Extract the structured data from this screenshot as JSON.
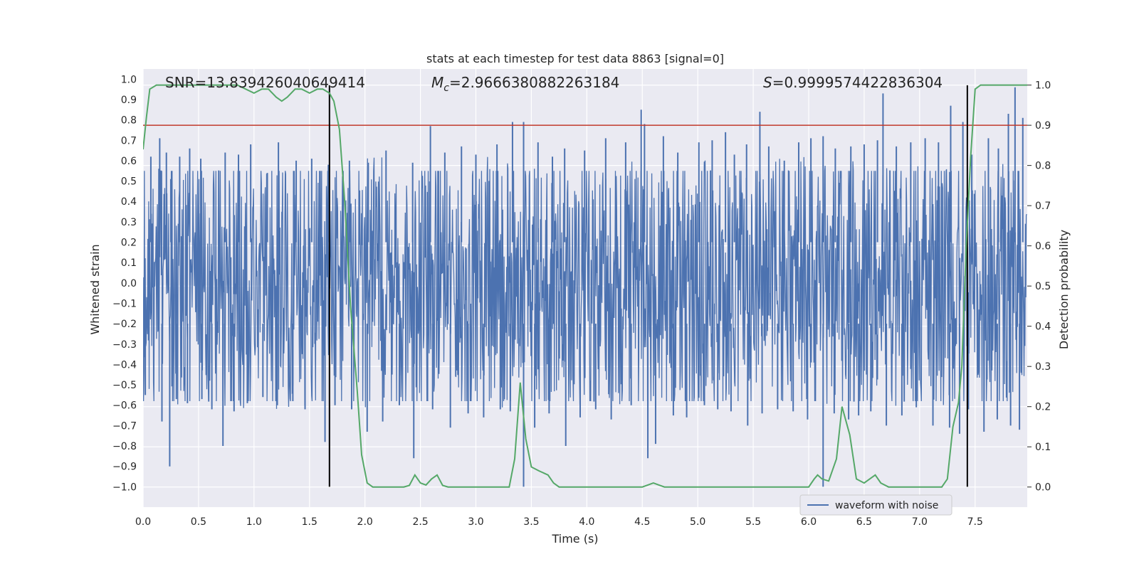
{
  "chart_data": {
    "type": "line",
    "title": "stats at each timestep for test data 8863 [signal=0]",
    "xlabel": "Time (s)",
    "ylabel_left": "Whitened strain",
    "ylabel_right": "Detection probability",
    "xlim": [
      0.0,
      7.97
    ],
    "ylim_left": [
      -1.1,
      1.05
    ],
    "ylim_right": [
      -0.05,
      1.04
    ],
    "grid": true,
    "x_ticks": [
      0.0,
      0.5,
      1.0,
      1.5,
      2.0,
      2.5,
      3.0,
      3.5,
      4.0,
      4.5,
      5.0,
      5.5,
      6.0,
      6.5,
      7.0,
      7.5
    ],
    "x_tick_labels": [
      "0.0",
      "0.5",
      "1.0",
      "1.5",
      "2.0",
      "2.5",
      "3.0",
      "3.5",
      "4.0",
      "4.5",
      "5.0",
      "5.5",
      "6.0",
      "6.5",
      "7.0",
      "7.5"
    ],
    "y_left_ticks": [
      1.0,
      0.9,
      0.8,
      0.7,
      0.6,
      0.5,
      0.4,
      0.3,
      0.2,
      0.1,
      0.0,
      -0.1,
      -0.2,
      -0.3,
      -0.4,
      -0.5,
      -0.6,
      -0.7,
      -0.8,
      -0.9,
      -1.0
    ],
    "y_left_tick_labels": [
      "1.0",
      "0.9",
      "0.8",
      "0.7",
      "0.6",
      "0.5",
      "0.4",
      "0.3",
      "0.2",
      "0.1",
      "0.0",
      "−0.1",
      "−0.2",
      "−0.3",
      "−0.4",
      "−0.5",
      "−0.6",
      "−0.7",
      "−0.8",
      "−0.9",
      "−1.0"
    ],
    "y_right_ticks": [
      1.0,
      0.9,
      0.8,
      0.7,
      0.6,
      0.5,
      0.4,
      0.3,
      0.2,
      0.1,
      0.0
    ],
    "y_right_tick_labels": [
      "1.0",
      "0.9",
      "0.8",
      "0.7",
      "0.6",
      "0.5",
      "0.4",
      "0.3",
      "0.2",
      "0.1",
      "0.0"
    ],
    "annotations": {
      "snr": "SNR=13.839426040649414",
      "mc_symbol": "M",
      "mc_sub": "c",
      "mc_value": "=2.9666380882263184",
      "s_symbol": "S",
      "s_value": "=0.9999574422836304"
    },
    "threshold_line": {
      "value": 0.9,
      "axis": "right",
      "color": "#c0392b"
    },
    "vertical_lines": [
      {
        "x": 1.68,
        "y_from": -1.0,
        "y_to": 0.97,
        "color": "#000000"
      },
      {
        "x": 7.43,
        "y_from": -1.0,
        "y_to": 0.97,
        "color": "#000000"
      }
    ],
    "series": [
      {
        "name": "waveform with noise",
        "axis": "left",
        "color": "#4c72b0",
        "kind": "dense-noise",
        "sample_rate_hz": 256,
        "dense_band": [
          -0.38,
          0.37
        ],
        "peaks_x": [
          0.07,
          0.15,
          0.21,
          0.25,
          0.33,
          0.42,
          0.52,
          0.74,
          0.86,
          0.97,
          1.12,
          1.22,
          1.38,
          1.52,
          1.67,
          1.86,
          2.03,
          2.19,
          2.43,
          2.59,
          2.72,
          2.87,
          3.0,
          3.19,
          3.33,
          3.43,
          3.56,
          3.69,
          3.8,
          3.98,
          4.17,
          4.35,
          4.49,
          4.52,
          4.69,
          4.82,
          5.01,
          5.13,
          5.25,
          5.33,
          5.44,
          5.56,
          5.64,
          5.78,
          5.91,
          6.02,
          6.13,
          6.24,
          6.38,
          6.5,
          6.62,
          6.67,
          6.79,
          6.92,
          7.05,
          7.17,
          7.28,
          7.39,
          7.47,
          7.62,
          7.71,
          7.8,
          7.86,
          7.93
        ],
        "peaks_y": [
          0.62,
          0.71,
          0.64,
          0.51,
          0.62,
          0.66,
          0.61,
          0.64,
          0.63,
          0.68,
          0.54,
          0.69,
          0.6,
          0.61,
          0.58,
          0.6,
          0.59,
          0.65,
          0.59,
          0.77,
          0.64,
          0.67,
          0.63,
          0.68,
          0.79,
          0.79,
          0.69,
          0.62,
          0.66,
          0.65,
          0.71,
          0.69,
          0.85,
          0.78,
          0.72,
          0.64,
          0.69,
          0.7,
          0.74,
          0.63,
          0.68,
          0.84,
          0.67,
          0.6,
          0.69,
          0.71,
          0.72,
          0.66,
          0.67,
          0.68,
          0.7,
          0.93,
          0.67,
          0.69,
          0.71,
          0.69,
          0.87,
          0.79,
          0.63,
          0.71,
          0.66,
          0.83,
          0.96,
          0.81
        ],
        "troughs_x": [
          0.02,
          0.17,
          0.24,
          0.3,
          0.4,
          0.53,
          0.62,
          0.72,
          0.82,
          0.94,
          1.08,
          1.21,
          1.35,
          1.46,
          1.64,
          1.73,
          1.88,
          2.02,
          2.16,
          2.31,
          2.44,
          2.61,
          2.77,
          2.93,
          3.07,
          3.22,
          3.31,
          3.43,
          3.53,
          3.66,
          3.81,
          3.94,
          4.08,
          4.22,
          4.4,
          4.55,
          4.62,
          4.78,
          4.9,
          5.06,
          5.18,
          5.3,
          5.45,
          5.58,
          5.72,
          5.86,
          5.99,
          6.13,
          6.23,
          6.36,
          6.45,
          6.56,
          6.7,
          6.84,
          6.97,
          7.12,
          7.27,
          7.36,
          7.44,
          7.58,
          7.7,
          7.82,
          7.9
        ],
        "troughs_y": [
          -0.55,
          -0.68,
          -0.9,
          -0.57,
          -0.59,
          -0.57,
          -0.62,
          -0.8,
          -0.63,
          -0.59,
          -0.56,
          -0.6,
          -0.58,
          -0.62,
          -0.78,
          -0.6,
          -0.62,
          -0.73,
          -0.68,
          -0.6,
          -0.86,
          -0.62,
          -0.71,
          -0.64,
          -0.66,
          -0.62,
          -0.63,
          -1.0,
          -0.71,
          -0.64,
          -0.8,
          -0.66,
          -0.62,
          -0.67,
          -0.6,
          -0.86,
          -0.79,
          -0.65,
          -0.66,
          -0.6,
          -0.62,
          -0.63,
          -0.7,
          -0.64,
          -0.62,
          -0.63,
          -0.67,
          -1.0,
          -0.64,
          -0.67,
          -0.65,
          -0.63,
          -0.7,
          -0.65,
          -0.61,
          -0.7,
          -0.71,
          -0.74,
          -0.62,
          -0.73,
          -0.67,
          -0.7,
          -0.72
        ]
      },
      {
        "name": "detection probability",
        "axis": "right",
        "color": "#55a868",
        "kind": "line",
        "x": [
          0.0,
          0.03,
          0.06,
          0.12,
          0.2,
          0.3,
          0.4,
          0.5,
          0.6,
          0.7,
          0.85,
          1.0,
          1.07,
          1.13,
          1.2,
          1.25,
          1.3,
          1.37,
          1.43,
          1.5,
          1.57,
          1.62,
          1.68,
          1.72,
          1.77,
          1.82,
          1.87,
          1.93,
          1.97,
          2.02,
          2.07,
          2.15,
          2.25,
          2.35,
          2.4,
          2.45,
          2.5,
          2.55,
          2.6,
          2.65,
          2.7,
          2.75,
          2.8,
          2.9,
          3.0,
          3.1,
          3.2,
          3.3,
          3.35,
          3.4,
          3.45,
          3.5,
          3.57,
          3.65,
          3.7,
          3.75,
          3.8,
          3.9,
          4.0,
          4.1,
          4.2,
          4.3,
          4.4,
          4.5,
          4.55,
          4.6,
          4.65,
          4.7,
          4.8,
          4.9,
          5.0,
          5.2,
          5.4,
          5.6,
          5.8,
          5.9,
          6.0,
          6.05,
          6.08,
          6.12,
          6.18,
          6.25,
          6.3,
          6.37,
          6.43,
          6.5,
          6.55,
          6.6,
          6.65,
          6.72,
          6.8,
          6.9,
          7.0,
          7.1,
          7.2,
          7.25,
          7.3,
          7.35,
          7.38,
          7.42,
          7.46,
          7.5,
          7.55,
          7.65,
          7.8,
          7.97
        ],
        "y": [
          0.84,
          0.92,
          0.99,
          1.0,
          1.0,
          1.0,
          1.0,
          1.0,
          1.0,
          1.0,
          1.0,
          0.98,
          0.99,
          0.99,
          0.97,
          0.96,
          0.97,
          0.99,
          0.99,
          0.98,
          0.99,
          0.99,
          0.98,
          0.96,
          0.89,
          0.7,
          0.45,
          0.24,
          0.08,
          0.01,
          0.0,
          0.0,
          0.0,
          0.0,
          0.004,
          0.03,
          0.01,
          0.005,
          0.02,
          0.03,
          0.004,
          0.0,
          0.0,
          0.0,
          0.0,
          0.0,
          0.0,
          0.0,
          0.07,
          0.26,
          0.12,
          0.05,
          0.04,
          0.03,
          0.01,
          0.0,
          0.0,
          0.0,
          0.0,
          0.0,
          0.0,
          0.0,
          0.0,
          0.0,
          0.005,
          0.01,
          0.005,
          0.0,
          0.0,
          0.0,
          0.0,
          0.0,
          0.0,
          0.0,
          0.0,
          0.0,
          0.0,
          0.02,
          0.03,
          0.02,
          0.015,
          0.07,
          0.2,
          0.13,
          0.02,
          0.01,
          0.02,
          0.03,
          0.01,
          0.0,
          0.0,
          0.0,
          0.0,
          0.0,
          0.0,
          0.02,
          0.15,
          0.21,
          0.3,
          0.6,
          0.82,
          0.99,
          1.0,
          1.0,
          1.0,
          1.0
        ]
      }
    ]
  }
}
